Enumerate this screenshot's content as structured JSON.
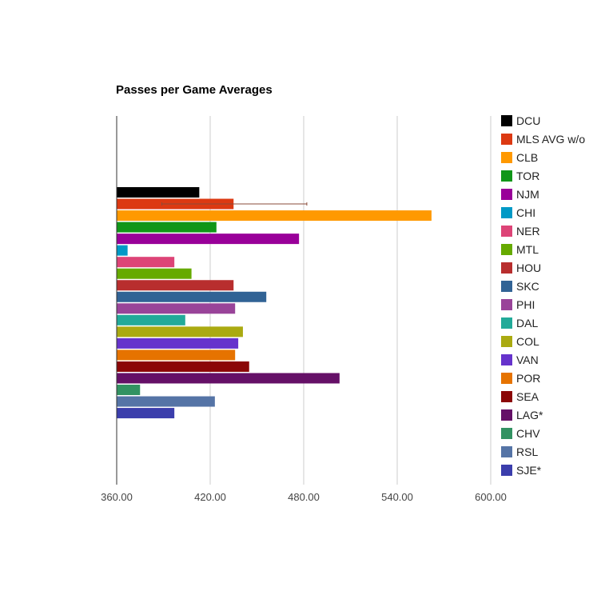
{
  "chart_data": {
    "type": "bar",
    "orientation": "horizontal",
    "title": "Passes per Game Averages",
    "xlabel": "",
    "ylabel": "",
    "xlim": [
      360,
      600
    ],
    "ticks": [
      "360.00",
      "420.00",
      "480.00",
      "540.00",
      "600.00"
    ],
    "tick_values": [
      360,
      420,
      480,
      540,
      600
    ],
    "grid": true,
    "legend_position": "right",
    "series": [
      {
        "name": "DCU",
        "value": 413,
        "color": "#000000"
      },
      {
        "name": "MLS AVG w/o",
        "value": 435,
        "color": "#dc3912",
        "error_low": 389,
        "error_high": 482
      },
      {
        "name": "CLB",
        "value": 562,
        "color": "#ff9900"
      },
      {
        "name": "TOR",
        "value": 424,
        "color": "#109618"
      },
      {
        "name": "NJM",
        "value": 477,
        "color": "#990099"
      },
      {
        "name": "CHI",
        "value": 367,
        "color": "#0099c6"
      },
      {
        "name": "NER",
        "value": 397,
        "color": "#dd4477"
      },
      {
        "name": "MTL",
        "value": 408,
        "color": "#66aa00"
      },
      {
        "name": "HOU",
        "value": 435,
        "color": "#b82e2e"
      },
      {
        "name": "SKC",
        "value": 456,
        "color": "#316395"
      },
      {
        "name": "PHI",
        "value": 436,
        "color": "#994499"
      },
      {
        "name": "DAL",
        "value": 404,
        "color": "#22aa99"
      },
      {
        "name": "COL",
        "value": 441,
        "color": "#aaaa11"
      },
      {
        "name": "VAN",
        "value": 438,
        "color": "#6633cc"
      },
      {
        "name": "POR",
        "value": 436,
        "color": "#e67300"
      },
      {
        "name": "SEA",
        "value": 445,
        "color": "#8b0707"
      },
      {
        "name": "LAG*",
        "value": 503,
        "color": "#651067"
      },
      {
        "name": "CHV",
        "value": 375,
        "color": "#329262"
      },
      {
        "name": "RSL",
        "value": 423,
        "color": "#5574a6"
      },
      {
        "name": "SJE*",
        "value": 397,
        "color": "#3b3eac"
      }
    ]
  }
}
